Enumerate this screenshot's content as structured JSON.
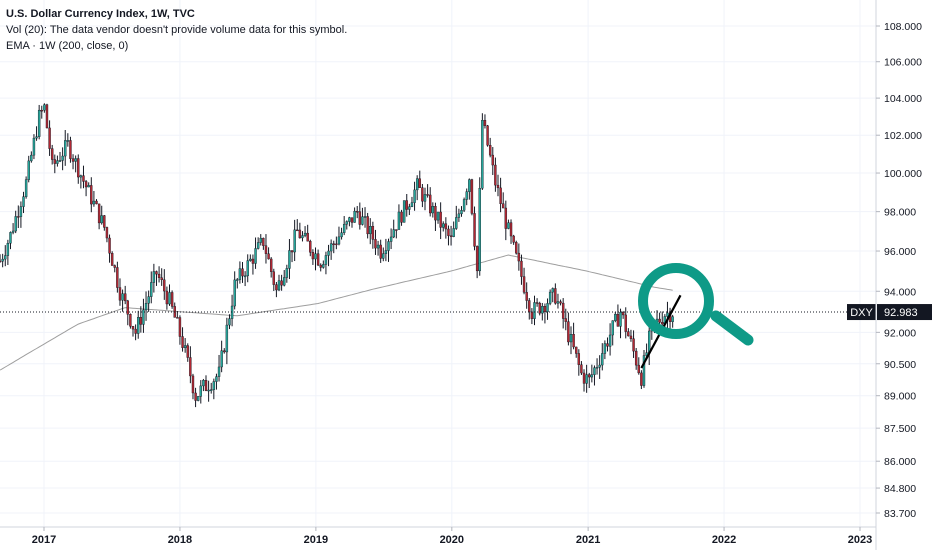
{
  "legend": {
    "title": "U.S. Dollar Currency Index, 1W, TVC",
    "volume_note": "Vol (20): The data vendor doesn't provide volume data for this symbol.",
    "ema": "EMA · 1W (200, close, 0)"
  },
  "symbol_tag": "DXY",
  "last_price_label": "92.983",
  "icons": {
    "overlay": "magnifying-glass-icon"
  },
  "colors": {
    "up": "#26a69a",
    "down": "#b22833",
    "wick": "#131722",
    "ema": "#9e9e9e",
    "magnifier": "#0e9a87",
    "last_price_bg": "#131722"
  },
  "chart_data": {
    "type": "candlestick",
    "title": "U.S. Dollar Currency Index, 1W, TVC",
    "x_axis": {
      "ticks": [
        "2017",
        "2018",
        "2019",
        "2020",
        "2021",
        "2022",
        "2023"
      ],
      "range": [
        "2016-09",
        "2023-02"
      ]
    },
    "y_axis": {
      "scale": "log",
      "ticks": [
        "108.000",
        "106.000",
        "104.000",
        "102.000",
        "100.000",
        "98.000",
        "96.000",
        "94.000",
        "92.000",
        "90.500",
        "89.000",
        "87.500",
        "86.000",
        "84.800",
        "83.700"
      ],
      "range": [
        83.3,
        109.0
      ],
      "position": "right"
    },
    "last_price": 92.983,
    "grid": true,
    "price_path": [
      {
        "t": "2016-09-05",
        "v": 95.5
      },
      {
        "t": "2016-10-03",
        "v": 96.8
      },
      {
        "t": "2016-11-14",
        "v": 99.5
      },
      {
        "t": "2016-12-19",
        "v": 103.0
      },
      {
        "t": "2017-01-02",
        "v": 103.5
      },
      {
        "t": "2017-01-23",
        "v": 100.3
      },
      {
        "t": "2017-03-06",
        "v": 101.5
      },
      {
        "t": "2017-04-17",
        "v": 99.6
      },
      {
        "t": "2017-06-12",
        "v": 97.2
      },
      {
        "t": "2017-07-24",
        "v": 94.0
      },
      {
        "t": "2017-09-04",
        "v": 92.0
      },
      {
        "t": "2017-10-30",
        "v": 94.9
      },
      {
        "t": "2017-12-04",
        "v": 93.5
      },
      {
        "t": "2018-01-08",
        "v": 91.5
      },
      {
        "t": "2018-02-12",
        "v": 89.0
      },
      {
        "t": "2018-03-19",
        "v": 89.6
      },
      {
        "t": "2018-04-16",
        "v": 90.0
      },
      {
        "t": "2018-05-28",
        "v": 94.3
      },
      {
        "t": "2018-08-13",
        "v": 96.5
      },
      {
        "t": "2018-09-17",
        "v": 94.0
      },
      {
        "t": "2018-11-12",
        "v": 97.0
      },
      {
        "t": "2019-01-14",
        "v": 95.5
      },
      {
        "t": "2019-04-22",
        "v": 98.0
      },
      {
        "t": "2019-06-24",
        "v": 96.0
      },
      {
        "t": "2019-09-30",
        "v": 99.3
      },
      {
        "t": "2019-12-30",
        "v": 96.5
      },
      {
        "t": "2020-02-17",
        "v": 99.8
      },
      {
        "t": "2020-03-09",
        "v": 95.0
      },
      {
        "t": "2020-03-23",
        "v": 102.8
      },
      {
        "t": "2020-04-27",
        "v": 99.5
      },
      {
        "t": "2020-06-08",
        "v": 96.5
      },
      {
        "t": "2020-08-03",
        "v": 93.0
      },
      {
        "t": "2020-10-05",
        "v": 93.8
      },
      {
        "t": "2020-12-14",
        "v": 90.0
      },
      {
        "t": "2021-01-04",
        "v": 89.7
      },
      {
        "t": "2021-03-29",
        "v": 93.0
      },
      {
        "t": "2021-05-24",
        "v": 89.9
      },
      {
        "t": "2021-06-21",
        "v": 92.2
      },
      {
        "t": "2021-07-26",
        "v": 92.9
      },
      {
        "t": "2021-08-16",
        "v": 92.98
      }
    ],
    "ema_path": [
      {
        "t": "2016-09-05",
        "v": 90.2
      },
      {
        "t": "2017-04-03",
        "v": 92.4
      },
      {
        "t": "2017-08-07",
        "v": 93.2
      },
      {
        "t": "2018-01-01",
        "v": 93.0
      },
      {
        "t": "2018-06-04",
        "v": 92.8
      },
      {
        "t": "2019-01-07",
        "v": 93.4
      },
      {
        "t": "2019-06-03",
        "v": 94.1
      },
      {
        "t": "2019-12-30",
        "v": 95.0
      },
      {
        "t": "2020-06-01",
        "v": 95.8
      },
      {
        "t": "2020-12-28",
        "v": 95.0
      },
      {
        "t": "2021-06-28",
        "v": 94.2
      },
      {
        "t": "2021-08-16",
        "v": 94.05
      }
    ],
    "trendline": {
      "from": {
        "t": "2021-05-24",
        "v": 90.3
      },
      "to": {
        "t": "2021-09-06",
        "v": 93.8
      }
    }
  }
}
